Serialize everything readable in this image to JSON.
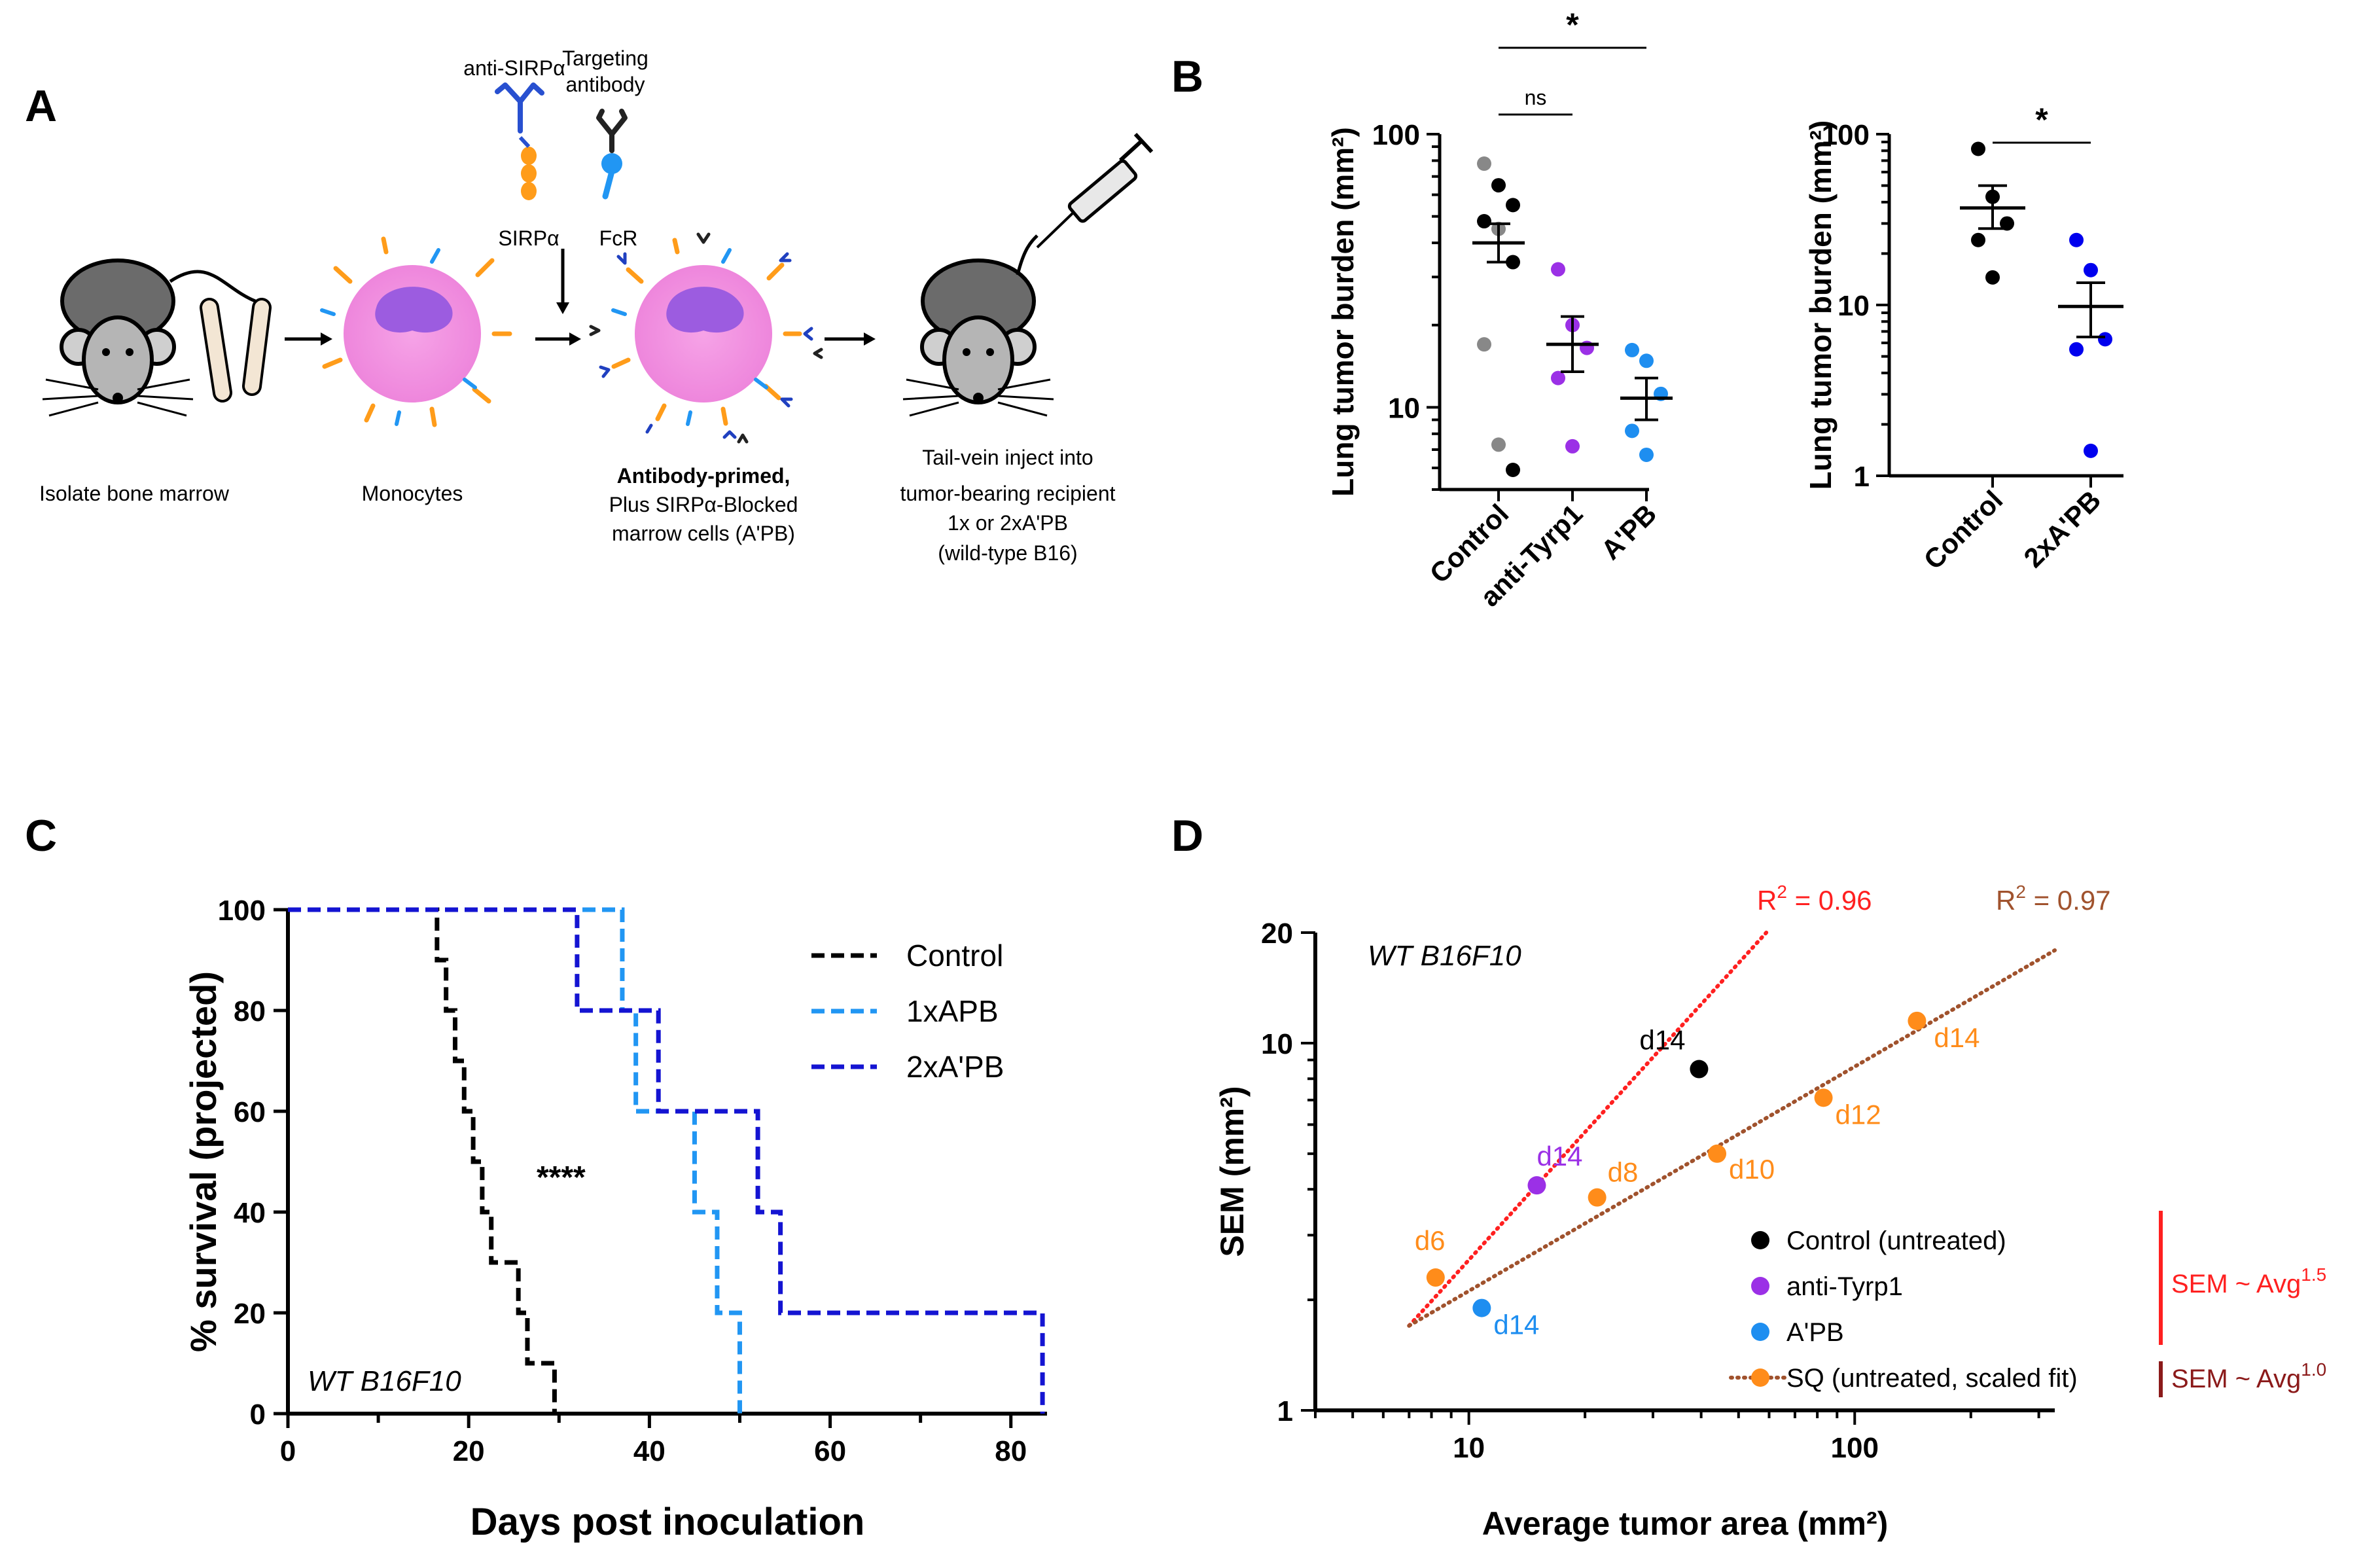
{
  "panel_a": {
    "letter": "A",
    "anti_sirpa": "anti-SIRPα",
    "targeting_line1": "Targeting",
    "targeting_line2": "antibody",
    "sirpa": "SIRPα",
    "fcr": "FcR",
    "step1": "Isolate bone marrow",
    "step2": "Monocytes",
    "step3_line1": "Antibody-primed,",
    "step3_line2": "Plus SIRPα-Blocked",
    "step3_line3": "marrow cells (A'PB)",
    "step4_line1": "Tail-vein inject into",
    "step4_line2": "tumor-bearing recipient",
    "step4_line3": "1x or 2xA'PB",
    "step4_line4": "(wild-type B16)"
  },
  "panel_b": {
    "letter": "B"
  },
  "panel_c": {
    "letter": "C"
  },
  "panel_d": {
    "letter": "D"
  },
  "chart_data": [
    {
      "id": "B_left",
      "type": "scatter",
      "yscale": "log",
      "ylabel": "Lung tumor burden (mm²)",
      "ylim": [
        5,
        100
      ],
      "yticks": [
        10,
        100
      ],
      "yticklabels": [
        "10",
        "100"
      ],
      "categories": [
        "Control",
        "anti-Tyrp1",
        "A'PB"
      ],
      "groups": [
        {
          "name": "Control",
          "points": [
            78,
            65,
            55,
            48,
            45,
            34,
            17,
            7.3,
            5.9
          ],
          "point_colors": [
            "#888888",
            "#000000",
            "#000000",
            "#000000",
            "#888888",
            "#000000",
            "#888888",
            "#888888",
            "#000000"
          ],
          "mean": 40,
          "sem": [
            34,
            47
          ]
        },
        {
          "name": "anti-Tyrp1",
          "points": [
            32,
            20,
            16.5,
            12.8,
            7.2
          ],
          "color": "#9b30e6",
          "mean": 17,
          "sem": [
            13.5,
            21.5
          ]
        },
        {
          "name": "A'PB",
          "points": [
            16.2,
            14.8,
            11.2,
            8.2,
            6.7
          ],
          "color": "#1e8ef0",
          "mean": 10.8,
          "sem": [
            9,
            12.8
          ]
        }
      ],
      "significance": [
        {
          "pair": [
            "Control",
            "anti-Tyrp1"
          ],
          "label": "ns"
        },
        {
          "pair": [
            "Control",
            "A'PB"
          ],
          "label": "*"
        }
      ]
    },
    {
      "id": "B_right",
      "type": "scatter",
      "yscale": "log",
      "ylabel": "Lung tumor burden (mm²)",
      "ylim": [
        1,
        100
      ],
      "yticks": [
        1,
        10,
        100
      ],
      "yticklabels": [
        "1",
        "10",
        "100"
      ],
      "categories": [
        "Control",
        "2xA'PB"
      ],
      "groups": [
        {
          "name": "Control",
          "points": [
            82,
            43,
            30,
            24,
            14.5
          ],
          "color": "#000000",
          "mean": 37,
          "sem": [
            28,
            50
          ]
        },
        {
          "name": "2xA'PB",
          "points": [
            24,
            16,
            6.3,
            5.5,
            1.4
          ],
          "color": "#0000ee",
          "mean": 9.8,
          "sem": [
            6.5,
            13.5
          ]
        }
      ],
      "significance": [
        {
          "pair": [
            "Control",
            "2xA'PB"
          ],
          "label": "*"
        }
      ]
    },
    {
      "id": "C",
      "type": "line",
      "title": "",
      "xlabel": "Days post inoculation",
      "ylabel": "% survival (projected)",
      "xlim": [
        0,
        84
      ],
      "ylim": [
        0,
        100
      ],
      "xticks": [
        0,
        20,
        40,
        60,
        80
      ],
      "yticks": [
        0,
        20,
        40,
        60,
        80,
        100
      ],
      "annotation": "WT B16F10",
      "significance": "****",
      "legend_position": "top-right",
      "series": [
        {
          "name": "Control",
          "color": "#000000",
          "steps": [
            [
              0,
              100
            ],
            [
              16.5,
              100
            ],
            [
              16.5,
              90
            ],
            [
              17.5,
              90
            ],
            [
              17.5,
              80
            ],
            [
              18.5,
              80
            ],
            [
              18.5,
              70
            ],
            [
              19.5,
              70
            ],
            [
              19.5,
              60
            ],
            [
              20.5,
              60
            ],
            [
              20.5,
              50
            ],
            [
              21.5,
              50
            ],
            [
              21.5,
              40
            ],
            [
              22.5,
              40
            ],
            [
              22.5,
              30
            ],
            [
              25.5,
              30
            ],
            [
              25.5,
              20
            ],
            [
              26.5,
              20
            ],
            [
              26.5,
              10
            ],
            [
              29.5,
              10
            ],
            [
              29.5,
              0
            ]
          ]
        },
        {
          "name": "1xAPB",
          "color": "#2196f3",
          "steps": [
            [
              0,
              100
            ],
            [
              37,
              100
            ],
            [
              37,
              80
            ],
            [
              38.5,
              80
            ],
            [
              38.5,
              60
            ],
            [
              45,
              60
            ],
            [
              45,
              40
            ],
            [
              47.5,
              40
            ],
            [
              47.5,
              20
            ],
            [
              50,
              20
            ],
            [
              50,
              0
            ]
          ]
        },
        {
          "name": "2xA'PB",
          "color": "#1414d2",
          "steps": [
            [
              0,
              100
            ],
            [
              32,
              100
            ],
            [
              32,
              80
            ],
            [
              41,
              80
            ],
            [
              41,
              60
            ],
            [
              52,
              60
            ],
            [
              52,
              40
            ],
            [
              54.5,
              40
            ],
            [
              54.5,
              20
            ],
            [
              83.5,
              20
            ],
            [
              83.5,
              0
            ]
          ]
        }
      ]
    },
    {
      "id": "D",
      "type": "scatter",
      "xscale": "log",
      "yscale": "log",
      "xlabel": "Average tumor area (mm²)",
      "ylabel": "SEM (mm²)",
      "xlim": [
        4,
        330
      ],
      "ylim": [
        1,
        20
      ],
      "xticks": [
        10,
        100
      ],
      "yticks": [
        1,
        10,
        20
      ],
      "annotation": "WT B16F10",
      "fits": [
        {
          "name": "SEM ~ Avg1.5",
          "r2_label": "R",
          "r2_value": " = 0.96",
          "color": "#ff2020",
          "from": [
            7,
            1.7
          ],
          "to": [
            59,
            20
          ]
        },
        {
          "name": "SEM ~ Avg1.0",
          "r2_label": "R",
          "r2_value": " = 0.97",
          "color": "#a0522d",
          "from": [
            7,
            1.7
          ],
          "to": [
            330,
            17.9
          ]
        }
      ],
      "points": [
        {
          "series": "Control (untreated)",
          "x": 39.5,
          "y": 8.5,
          "label": "d14",
          "color": "#000000"
        },
        {
          "series": "anti-Tyrp1",
          "x": 15,
          "y": 4.1,
          "label": "d14",
          "color": "#9b30e6"
        },
        {
          "series": "A'PB",
          "x": 10.8,
          "y": 1.9,
          "label": "d14",
          "color": "#1e8ef0"
        },
        {
          "series": "SQ (untreated, scaled fit)",
          "x": 8.2,
          "y": 2.3,
          "label": "d6",
          "color": "#ff8c1a"
        },
        {
          "series": "SQ (untreated, scaled fit)",
          "x": 21.5,
          "y": 3.8,
          "label": "d8",
          "color": "#ff8c1a"
        },
        {
          "series": "SQ (untreated, scaled fit)",
          "x": 44,
          "y": 5,
          "label": "d10",
          "color": "#ff8c1a"
        },
        {
          "series": "SQ (untreated, scaled fit)",
          "x": 83,
          "y": 7.1,
          "label": "d12",
          "color": "#ff8c1a"
        },
        {
          "series": "SQ (untreated, scaled fit)",
          "x": 145,
          "y": 11.5,
          "label": "d14",
          "color": "#ff8c1a"
        }
      ],
      "legend": [
        "Control (untreated)",
        "anti-Tyrp1",
        "A'PB",
        "SQ (untreated, scaled fit)"
      ],
      "legend_colors": [
        "#000000",
        "#9b30e6",
        "#1e8ef0",
        "#ff8c1a"
      ],
      "scaling_labels": [
        {
          "text": "SEM ~ Avg",
          "exp": "1.5",
          "color": "#ff2020"
        },
        {
          "text": "SEM ~ Avg",
          "exp": "1.0",
          "color": "#8b1a1a"
        }
      ]
    }
  ]
}
